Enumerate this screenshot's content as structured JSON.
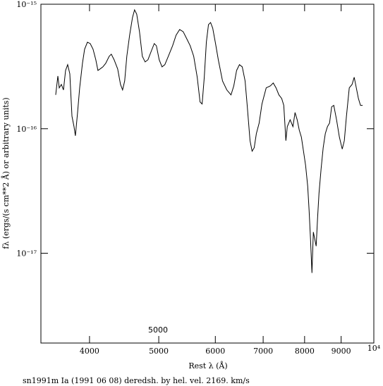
{
  "chart_data": {
    "type": "line",
    "title": "sn1991m Ia (1991 06 08) deredsh. by hel. vel.  2169. km/s",
    "x_label": "Rest λ (Å)",
    "y_label": "fλ (ergs/(s cm**2 Å) or arbitrary units)",
    "annotation": "5000",
    "x_scale": "log",
    "y_scale": "log",
    "grid": false,
    "color": "#000000",
    "xlim": [
      3420,
      10000
    ],
    "ylim": [
      1.9e-18,
      1e-15
    ],
    "xticks": [
      4000,
      5000,
      6000,
      7000,
      8000,
      9000,
      {
        "value": 10000,
        "label": "10⁴"
      }
    ],
    "yticks": [
      {
        "value": 1e-17,
        "label": "10⁻¹⁷"
      },
      {
        "value": 1e-16,
        "label": "10⁻¹⁶"
      },
      {
        "value": 1e-15,
        "label": "10⁻¹⁵"
      }
    ],
    "x": [
      3587,
      3612,
      3628,
      3653,
      3678,
      3703,
      3728,
      3754,
      3780,
      3805,
      3822,
      3849,
      3875,
      3910,
      3937,
      3973,
      4009,
      4046,
      4082,
      4110,
      4138,
      4176,
      4214,
      4262,
      4291,
      4330,
      4380,
      4420,
      4450,
      4480,
      4511,
      4552,
      4594,
      4625,
      4657,
      4699,
      4742,
      4785,
      4829,
      4884,
      4928,
      4962,
      5007,
      5053,
      5099,
      5157,
      5228,
      5287,
      5348,
      5409,
      5471,
      5533,
      5596,
      5660,
      5712,
      5750,
      5790,
      5829,
      5869,
      5909,
      5950,
      6004,
      6058,
      6141,
      6226,
      6311,
      6368,
      6426,
      6485,
      6544,
      6604,
      6649,
      6710,
      6755,
      6801,
      6848,
      6910,
      6973,
      7069,
      7166,
      7231,
      7297,
      7364,
      7431,
      7481,
      7532,
      7566,
      7636,
      7705,
      7758,
      7811,
      7864,
      7918,
      7972,
      8026,
      8081,
      8118,
      8154,
      8192,
      8229,
      8266,
      8304,
      8342,
      8380,
      8437,
      8494,
      8552,
      8612,
      8670,
      8729,
      8789,
      8868,
      8950,
      9032,
      9093,
      9155,
      9239,
      9323,
      9387,
      9451,
      9515,
      9580,
      9646
    ],
    "values": [
      1.87e-16,
      2.65e-16,
      2.13e-16,
      2.27e-16,
      2.05e-16,
      2.94e-16,
      3.27e-16,
      2.76e-16,
      1.26e-16,
      1.04e-16,
      8.78e-17,
      1.35e-16,
      2.13e-16,
      3.35e-16,
      4.35e-16,
      4.95e-16,
      4.83e-16,
      4.35e-16,
      3.58e-16,
      2.94e-16,
      3.02e-16,
      3.14e-16,
      3.35e-16,
      3.82e-16,
      3.97e-16,
      3.58e-16,
      3.02e-16,
      2.27e-16,
      2.05e-16,
      2.42e-16,
      3.82e-16,
      5.64e-16,
      7.81e-16,
      9.01e-16,
      8.33e-16,
      6.02e-16,
      3.82e-16,
      3.44e-16,
      3.58e-16,
      4.24e-16,
      4.83e-16,
      4.64e-16,
      3.58e-16,
      3.14e-16,
      3.27e-16,
      3.82e-16,
      4.64e-16,
      5.64e-16,
      6.26e-16,
      6.02e-16,
      5.29e-16,
      4.64e-16,
      3.82e-16,
      2.59e-16,
      1.64e-16,
      1.58e-16,
      2.59e-16,
      4.95e-16,
      6.86e-16,
      7.13e-16,
      6.42e-16,
      4.83e-16,
      3.58e-16,
      2.42e-16,
      2.05e-16,
      1.87e-16,
      2.21e-16,
      2.94e-16,
      3.27e-16,
      3.14e-16,
      2.42e-16,
      1.54e-16,
      8.02e-17,
      6.6e-17,
      7.04e-17,
      9.13e-17,
      1.11e-16,
      1.58e-16,
      2.13e-16,
      2.21e-16,
      2.33e-16,
      2.13e-16,
      1.87e-16,
      1.75e-16,
      1.54e-16,
      8.02e-17,
      1.04e-16,
      1.18e-16,
      1.04e-16,
      1.35e-16,
      1.18e-16,
      9.74e-17,
      8.55e-17,
      6.6e-17,
      5.08e-17,
      3.44e-17,
      2.18e-17,
      1.3e-17,
      6.95e-18,
      1.48e-17,
      1.3e-17,
      1.14e-17,
      1.92e-17,
      3.02e-17,
      4.76e-17,
      7.04e-17,
      9.13e-17,
      1.04e-16,
      1.11e-16,
      1.5e-16,
      1.54e-16,
      1.18e-16,
      8.55e-17,
      6.86e-17,
      8.02e-17,
      1.26e-16,
      2.13e-16,
      2.27e-16,
      2.59e-16,
      2.13e-16,
      1.75e-16,
      1.54e-16,
      1.54e-16
    ]
  }
}
